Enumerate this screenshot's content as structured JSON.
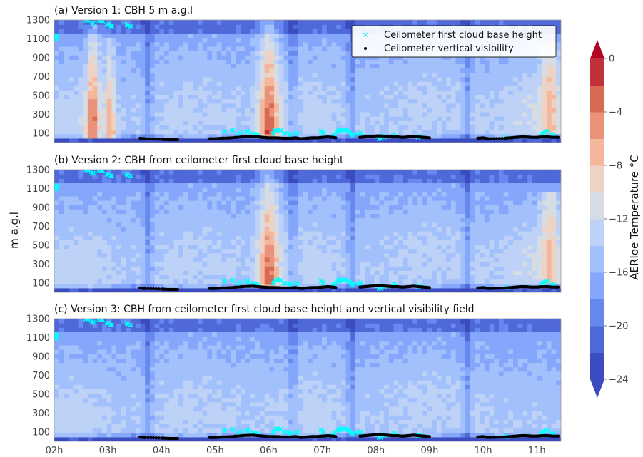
{
  "figure": {
    "ylabel": "m a.g.l",
    "colorbar_label": "AERIoe Temperature °C",
    "legend": {
      "cloud_base_label": "Ceilometer first cloud base height",
      "vertical_visibility_label": "Ceilometer vertical visibility"
    }
  },
  "chart_data": [
    {
      "type": "heatmap",
      "title": "(a) Version 1: CBH 5 m a.g.l",
      "xlabel": "",
      "ylabel": "m a.g.l",
      "x_ticks": [
        "02h",
        "03h",
        "04h",
        "05h",
        "06h",
        "07h",
        "08h",
        "09h",
        "10h",
        "11h"
      ],
      "x_range_hours": [
        2,
        11.45
      ],
      "y_ticks": [
        100,
        300,
        500,
        700,
        900,
        1100,
        1300
      ],
      "y_range_m": [
        0,
        1300
      ],
      "scenario": "v1",
      "legend_position": "top-right",
      "cbh_m": 5
    },
    {
      "type": "heatmap",
      "title": "(b) Version 2: CBH from ceilometer first cloud base height",
      "xlabel": "",
      "ylabel": "m a.g.l",
      "x_ticks": [
        "02h",
        "03h",
        "04h",
        "05h",
        "06h",
        "07h",
        "08h",
        "09h",
        "10h",
        "11h"
      ],
      "x_range_hours": [
        2,
        11.45
      ],
      "y_ticks": [
        100,
        300,
        500,
        700,
        900,
        1100,
        1300
      ],
      "y_range_m": [
        0,
        1300
      ],
      "scenario": "v2"
    },
    {
      "type": "heatmap",
      "title": "(c) Version 3: CBH from ceilometer first cloud base height and vertical visibility field",
      "xlabel": "",
      "ylabel": "m a.g.l",
      "x_ticks": [
        "02h",
        "03h",
        "04h",
        "05h",
        "06h",
        "07h",
        "08h",
        "09h",
        "10h",
        "11h"
      ],
      "x_range_hours": [
        2,
        11.45
      ],
      "y_ticks": [
        100,
        300,
        500,
        700,
        900,
        1100,
        1300
      ],
      "y_range_m": [
        0,
        1300
      ],
      "scenario": "v3"
    }
  ],
  "colorbar": {
    "unit": "°C",
    "min": -24,
    "max": 0,
    "step": 2,
    "extend": "both",
    "ticks": [
      0,
      -4,
      -8,
      -12,
      -16,
      -20,
      -24
    ],
    "tick_labels": [
      "0",
      "−4",
      "−8",
      "−12",
      "−16",
      "−20",
      "−24"
    ],
    "colors": [
      "#3b4cc0",
      "#4f69d9",
      "#6788ee",
      "#84a7fc",
      "#a2c0fb",
      "#bdd2f6",
      "#d6dce4",
      "#ecd3c5",
      "#f4b79c",
      "#eb927a",
      "#d86a53",
      "#c1313a"
    ],
    "under_color": "#3b4cc0",
    "over_color": "#b40426"
  },
  "series_styles": {
    "cloud_base_color": "#00ffff",
    "vertical_visibility_color": "#000000"
  },
  "ceilometer": {
    "cloud_base_height": [
      [
        2.05,
        1100
      ],
      [
        2.05,
        1125
      ],
      [
        2.6,
        1290
      ],
      [
        2.7,
        1260
      ],
      [
        2.8,
        1300
      ],
      [
        2.9,
        1280
      ],
      [
        3.0,
        1250
      ],
      [
        3.05,
        1230
      ],
      [
        3.35,
        1250
      ],
      [
        3.4,
        1230
      ],
      [
        5.2,
        110
      ],
      [
        5.3,
        130
      ],
      [
        5.45,
        100
      ],
      [
        5.6,
        110
      ],
      [
        5.7,
        100
      ],
      [
        5.8,
        90
      ],
      [
        6.1,
        100
      ],
      [
        6.15,
        120
      ],
      [
        6.2,
        130
      ],
      [
        6.3,
        100
      ],
      [
        6.4,
        90
      ],
      [
        6.5,
        100
      ],
      [
        7.0,
        110
      ],
      [
        7.05,
        100
      ],
      [
        7.2,
        80
      ],
      [
        7.3,
        110
      ],
      [
        7.35,
        120
      ],
      [
        7.4,
        120
      ],
      [
        7.45,
        130
      ],
      [
        7.5,
        110
      ],
      [
        7.55,
        90
      ],
      [
        7.6,
        80
      ],
      [
        7.7,
        100
      ],
      [
        8.05,
        40
      ],
      [
        8.15,
        60
      ],
      [
        8.35,
        80
      ],
      [
        8.8,
        60
      ],
      [
        10.45,
        50
      ],
      [
        11.1,
        100
      ],
      [
        11.2,
        110
      ],
      [
        11.3,
        90
      ]
    ],
    "vertical_visibility": [
      [
        3.6,
        45
      ],
      [
        3.7,
        40
      ],
      [
        4.0,
        35
      ],
      [
        4.15,
        30
      ],
      [
        4.3,
        30
      ],
      [
        4.9,
        40
      ],
      [
        5.0,
        40
      ],
      [
        5.1,
        45
      ],
      [
        5.3,
        50
      ],
      [
        5.5,
        60
      ],
      [
        5.7,
        65
      ],
      [
        5.8,
        60
      ],
      [
        5.9,
        55
      ],
      [
        6.0,
        50
      ],
      [
        6.15,
        50
      ],
      [
        6.3,
        45
      ],
      [
        6.4,
        45
      ],
      [
        6.5,
        50
      ],
      [
        6.6,
        40
      ],
      [
        6.7,
        45
      ],
      [
        6.8,
        50
      ],
      [
        6.9,
        50
      ],
      [
        7.0,
        55
      ],
      [
        7.1,
        60
      ],
      [
        7.2,
        55
      ],
      [
        7.25,
        50
      ],
      [
        7.7,
        55
      ],
      [
        7.8,
        60
      ],
      [
        7.9,
        65
      ],
      [
        8.0,
        70
      ],
      [
        8.1,
        70
      ],
      [
        8.2,
        65
      ],
      [
        8.3,
        60
      ],
      [
        8.4,
        60
      ],
      [
        8.5,
        55
      ],
      [
        8.6,
        60
      ],
      [
        8.7,
        65
      ],
      [
        8.8,
        60
      ],
      [
        8.9,
        55
      ],
      [
        9.0,
        50
      ],
      [
        9.9,
        45
      ],
      [
        10.0,
        50
      ],
      [
        10.1,
        40
      ],
      [
        10.4,
        45
      ],
      [
        10.5,
        50
      ],
      [
        10.6,
        55
      ],
      [
        10.7,
        60
      ],
      [
        10.8,
        60
      ],
      [
        10.9,
        55
      ],
      [
        11.0,
        55
      ],
      [
        11.1,
        60
      ],
      [
        11.2,
        60
      ],
      [
        11.3,
        55
      ],
      [
        11.4,
        55
      ]
    ]
  }
}
